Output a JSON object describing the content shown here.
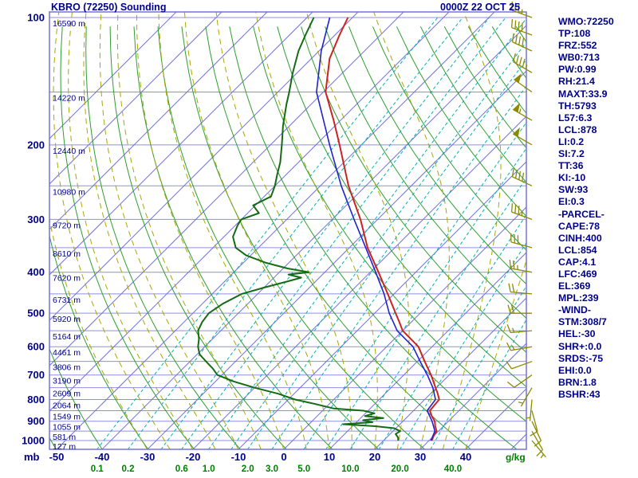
{
  "title": "KBRO (72250) Sounding",
  "datetime": "0000Z 22 OCT 25",
  "axis": {
    "pressure_unit": "mb",
    "mixing_unit": "g/kg"
  },
  "colors": {
    "background": "#ffffff",
    "text_navy": "#00008b",
    "grid_blue": "#8f8fdf",
    "isotherm_blue": "#7373d9",
    "dry_adiabat_green": "#2f9e2f",
    "moist_adiabat_olive": "#a8a800",
    "mixing_ratio_cyan": "#00b2b2",
    "mixing_label_green": "#008000",
    "temperature_red": "#cc2222",
    "dewpoint_green": "#156b15",
    "parcel_blue": "#2222cc",
    "wind_barb_olive": "#8b8b00"
  },
  "indices": [
    "WMO:72250",
    "TP:108",
    "FRZ:552",
    "WB0:713",
    "PW:0.99",
    "RH:21.4",
    "MAXT:33.9",
    "TH:5793",
    "L57:6.3",
    "LCL:878",
    "LI:0.2",
    "SI:7.2",
    "TT:36",
    "KI:-10",
    "SW:93",
    "EI:0.3",
    "-PARCEL-",
    "CAPE:78",
    "CINH:400",
    "LCL:854",
    "CAP:4.1",
    "LFC:469",
    "EL:369",
    "MPL:239",
    "-WIND-",
    "STM:308/7",
    "HEL:-30",
    "SHR+:0.0",
    "SRDS:-75",
    "EHI:0.0",
    "BRN:1.8",
    "BSHR:43"
  ],
  "chart_data": {
    "type": "line",
    "subtype": "skew_t_log_p_sounding",
    "title": "KBRO (72250) Sounding",
    "valid_time": "0000Z 22 OCT 25",
    "pressure_axis": {
      "min_mb": 100,
      "max_mb": 1050,
      "scale": "log",
      "gridline_step_mb": 50,
      "labels": [
        100,
        200,
        300,
        400,
        500,
        600,
        700,
        800,
        900,
        1000
      ]
    },
    "temp_axis": {
      "unit": "C",
      "skew_deg": 45,
      "labels": [
        -50,
        -40,
        -30,
        -20,
        -10,
        0,
        10,
        20,
        30,
        40
      ]
    },
    "isotherms": {
      "min_c": -120,
      "max_c": 50,
      "step_c": 10
    },
    "dry_adiabats_theta_k": {
      "min_k": 200,
      "max_k": 450,
      "step_k": 10
    },
    "moist_adiabat_starts_c": [
      -30,
      -25,
      -20,
      -15,
      -10,
      -5,
      0,
      5,
      10,
      15,
      20,
      25,
      30,
      35,
      40
    ],
    "mixing_ratio_lines": {
      "unit": "g/kg",
      "values": [
        0.1,
        0.2,
        0.4,
        0.6,
        1.0,
        1.5,
        2.0,
        3.0,
        5.0,
        7.0,
        10.0,
        15.0,
        20.0,
        30.0,
        40.0
      ],
      "labeled": [
        0.1,
        0.2,
        0.6,
        1.0,
        2.0,
        3.0,
        5.0,
        10.0,
        20.0,
        40.0
      ]
    },
    "height_labels": [
      {
        "p": 100,
        "text": "16590 m"
      },
      {
        "p": 150,
        "text": "14220 m"
      },
      {
        "p": 200,
        "text": "12440 m"
      },
      {
        "p": 250,
        "text": "10980 m"
      },
      {
        "p": 300,
        "text": "9720 m"
      },
      {
        "p": 350,
        "text": "8610 m"
      },
      {
        "p": 400,
        "text": "7620 m"
      },
      {
        "p": 450,
        "text": "6731 m"
      },
      {
        "p": 500,
        "text": "5920 m"
      },
      {
        "p": 550,
        "text": "5164 m"
      },
      {
        "p": 600,
        "text": "4461 m"
      },
      {
        "p": 650,
        "text": "3806 m"
      },
      {
        "p": 700,
        "text": "3190 m"
      },
      {
        "p": 750,
        "text": "2609 m"
      },
      {
        "p": 800,
        "text": "2064 m"
      },
      {
        "p": 850,
        "text": "1549 m"
      },
      {
        "p": 900,
        "text": "1055 m"
      },
      {
        "p": 950,
        "text": "581 m"
      },
      {
        "p": 1000,
        "text": "127 m"
      }
    ],
    "series": [
      {
        "name": "temperature",
        "color": "#cc2222",
        "width": 2,
        "points_p_t": [
          [
            1000,
            30.6
          ],
          [
            975,
            30.0
          ],
          [
            950,
            29.6
          ],
          [
            925,
            28.2
          ],
          [
            900,
            27.0
          ],
          [
            875,
            25.2
          ],
          [
            850,
            23.6
          ],
          [
            825,
            23.4
          ],
          [
            800,
            23.2
          ],
          [
            775,
            21.6
          ],
          [
            750,
            19.8
          ],
          [
            700,
            16.0
          ],
          [
            650,
            11.6
          ],
          [
            600,
            7.0
          ],
          [
            575,
            3.6
          ],
          [
            550,
            0.0
          ],
          [
            525,
            -2.6
          ],
          [
            500,
            -5.4
          ],
          [
            450,
            -11.4
          ],
          [
            400,
            -18.2
          ],
          [
            350,
            -26.0
          ],
          [
            300,
            -33.8
          ],
          [
            250,
            -43.8
          ],
          [
            200,
            -54.8
          ],
          [
            175,
            -61.5
          ],
          [
            150,
            -69.5
          ],
          [
            125,
            -76.0
          ],
          [
            110,
            -79.0
          ],
          [
            100,
            -81.0
          ]
        ]
      },
      {
        "name": "dewpoint",
        "color": "#156b15",
        "width": 2,
        "points_p_t": [
          [
            1000,
            23.2
          ],
          [
            985,
            22.6
          ],
          [
            965,
            21.2
          ],
          [
            950,
            21.6
          ],
          [
            935,
            19.6
          ],
          [
            925,
            15.0
          ],
          [
            915,
            7.5
          ],
          [
            905,
            13.5
          ],
          [
            895,
            11.0
          ],
          [
            885,
            15.0
          ],
          [
            875,
            10.5
          ],
          [
            862,
            12.0
          ],
          [
            850,
            9.0
          ],
          [
            840,
            2.0
          ],
          [
            820,
            -3.0
          ],
          [
            800,
            -8.5
          ],
          [
            775,
            -13.5
          ],
          [
            750,
            -20.0
          ],
          [
            725,
            -26.0
          ],
          [
            700,
            -31.0
          ],
          [
            675,
            -33.5
          ],
          [
            650,
            -36.5
          ],
          [
            625,
            -39.5
          ],
          [
            600,
            -41.5
          ],
          [
            575,
            -43.0
          ],
          [
            550,
            -45.0
          ],
          [
            525,
            -46.0
          ],
          [
            500,
            -46.5
          ],
          [
            475,
            -45.5
          ],
          [
            450,
            -43.5
          ],
          [
            435,
            -40.0
          ],
          [
            420,
            -36.0
          ],
          [
            412,
            -34.0
          ],
          [
            405,
            -37.5
          ],
          [
            400,
            -33.5
          ],
          [
            392,
            -39.0
          ],
          [
            380,
            -45.0
          ],
          [
            365,
            -51.0
          ],
          [
            350,
            -55.0
          ],
          [
            330,
            -58.0
          ],
          [
            310,
            -59.5
          ],
          [
            300,
            -60.0
          ],
          [
            290,
            -57.5
          ],
          [
            278,
            -60.5
          ],
          [
            265,
            -58.5
          ],
          [
            250,
            -60.0
          ],
          [
            235,
            -62.0
          ],
          [
            220,
            -64.0
          ],
          [
            200,
            -67.5
          ],
          [
            180,
            -71.5
          ],
          [
            160,
            -75.5
          ],
          [
            150,
            -77.5
          ],
          [
            135,
            -81.0
          ],
          [
            120,
            -84.5
          ],
          [
            110,
            -86.5
          ],
          [
            100,
            -88.5
          ]
        ]
      },
      {
        "name": "parcel",
        "color": "#2222cc",
        "width": 1.6,
        "points_p_t": [
          [
            1000,
            30.4
          ],
          [
            950,
            29.2
          ],
          [
            900,
            26.4
          ],
          [
            850,
            23.0
          ],
          [
            800,
            22.4
          ],
          [
            750,
            19.2
          ],
          [
            700,
            15.2
          ],
          [
            650,
            10.6
          ],
          [
            600,
            5.8
          ],
          [
            550,
            -1.2
          ],
          [
            500,
            -6.8
          ],
          [
            450,
            -12.2
          ],
          [
            400,
            -18.8
          ],
          [
            350,
            -26.4
          ],
          [
            300,
            -35.2
          ],
          [
            250,
            -45.4
          ],
          [
            200,
            -57.0
          ],
          [
            150,
            -71.5
          ],
          [
            120,
            -79.5
          ],
          [
            100,
            -85.0
          ]
        ]
      }
    ],
    "wind_barbs_p_dir_spd": [
      [
        1000,
        140,
        5
      ],
      [
        950,
        150,
        10
      ],
      [
        900,
        155,
        10
      ],
      [
        850,
        165,
        10
      ],
      [
        800,
        185,
        5
      ],
      [
        750,
        210,
        5
      ],
      [
        700,
        235,
        10
      ],
      [
        650,
        250,
        10
      ],
      [
        600,
        260,
        15
      ],
      [
        550,
        265,
        15
      ],
      [
        500,
        270,
        20
      ],
      [
        450,
        275,
        20
      ],
      [
        400,
        280,
        25
      ],
      [
        350,
        285,
        30
      ],
      [
        300,
        290,
        35
      ],
      [
        250,
        295,
        40
      ],
      [
        200,
        300,
        50
      ],
      [
        175,
        300,
        55
      ],
      [
        150,
        305,
        50
      ],
      [
        135,
        300,
        45
      ],
      [
        120,
        295,
        40
      ],
      [
        110,
        290,
        40
      ],
      [
        100,
        290,
        35
      ]
    ]
  }
}
